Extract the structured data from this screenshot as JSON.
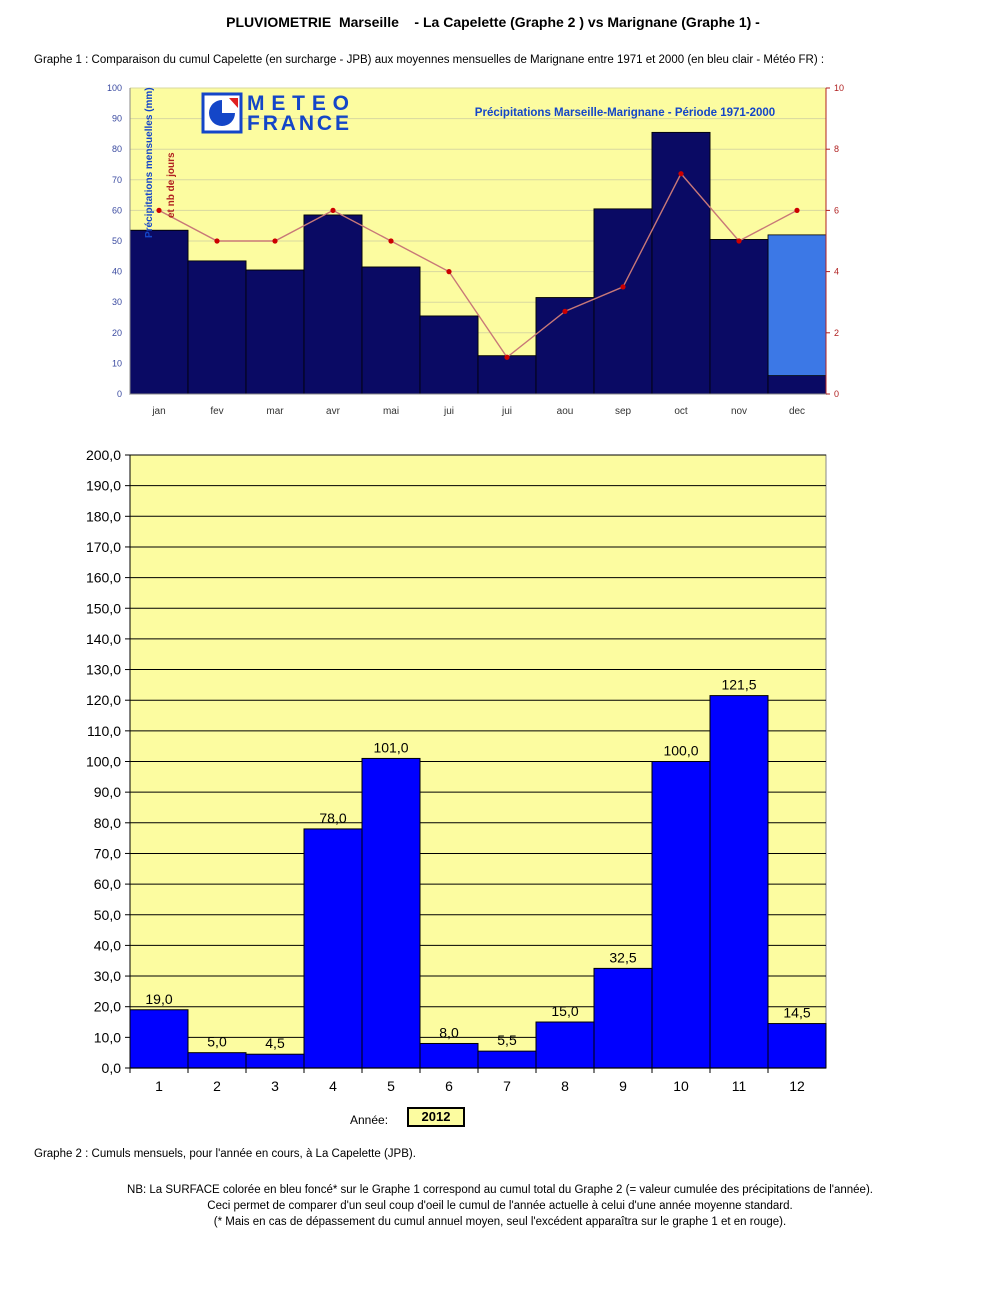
{
  "header": {
    "title": "PLUVIOMETRIE  Marseille    - La Capelette (Graphe 2 ) vs Marignane (Graphe 1) -",
    "subtitle": "Graphe 1 : Comparaison du cumul Capelette (en surcharge - JPB) aux moyennes mensuelles de Marignane entre 1971 et 2000 (en bleu clair - Météo FR) :"
  },
  "logo": {
    "line1": "METEO",
    "line2": "FRANCE"
  },
  "colors": {
    "plot_bg": "#fcfca0",
    "dark_bar": "#0a0a64",
    "light_bar": "#3c78e6",
    "line": "#c87878",
    "marker": "#cc0000",
    "bar2": "#0000ff",
    "axis_blue": "#3a4aa0",
    "axis_red": "#b02020",
    "logo_blue": "#1446c8"
  },
  "chart_data": [
    {
      "type": "bar",
      "title": "Précipitations Marseille-Marignane - Période 1971-2000",
      "ylabel": "Précipitations mensuelles (mm)",
      "y2label": "et nb de jours",
      "categories": [
        "jan",
        "fev",
        "mar",
        "avr",
        "mai",
        "jui",
        "jui",
        "aou",
        "sep",
        "oct",
        "nov",
        "dec"
      ],
      "ylim": [
        0,
        100
      ],
      "y_ticks": [
        "0",
        "10",
        "20",
        "30",
        "40",
        "50",
        "60",
        "70",
        "80",
        "90",
        "100"
      ],
      "y2lim": [
        0,
        10
      ],
      "y2_ticks": [
        "0",
        "2",
        "4",
        "6",
        "8",
        "10"
      ],
      "grid": true,
      "series": [
        {
          "kind": "bar",
          "values": [
            53.5,
            43.5,
            40.5,
            58.5,
            41.5,
            25.5,
            12.5,
            31.5,
            60.5,
            85.5,
            50.5,
            52
          ]
        },
        {
          "kind": "bar-overlay",
          "values": [
            53.5,
            43.5,
            40.5,
            58.5,
            41.5,
            25.5,
            12.5,
            31.5,
            60.5,
            85.5,
            50.5,
            6
          ]
        },
        {
          "kind": "line",
          "axis": "right",
          "values": [
            6,
            5,
            5,
            6,
            5,
            4,
            1.2,
            2.7,
            3.5,
            7.2,
            5,
            6
          ]
        }
      ]
    },
    {
      "type": "bar",
      "categories": [
        "1",
        "2",
        "3",
        "4",
        "5",
        "6",
        "7",
        "8",
        "9",
        "10",
        "11",
        "12"
      ],
      "values": [
        19.0,
        5.0,
        4.5,
        78.0,
        101.0,
        8.0,
        5.5,
        15.0,
        32.5,
        100.0,
        121.5,
        14.5
      ],
      "value_labels": [
        "19,0",
        "5,0",
        "4,5",
        "78,0",
        "101,0",
        "8,0",
        "5,5",
        "15,0",
        "32,5",
        "100,0",
        "121,5",
        "14,5"
      ],
      "ylim": [
        0,
        200
      ],
      "y_ticks": [
        "0,0",
        "10,0",
        "20,0",
        "30,0",
        "40,0",
        "50,0",
        "60,0",
        "70,0",
        "80,0",
        "90,0",
        "100,0",
        "110,0",
        "120,0",
        "130,0",
        "140,0",
        "150,0",
        "160,0",
        "170,0",
        "180,0",
        "190,0",
        "200,0"
      ],
      "grid": true
    }
  ],
  "year_label": "Année:",
  "year_value": "2012",
  "caption2": "Graphe 2 : Cumuls mensuels, pour l'année en cours, à La Capelette (JPB).",
  "note": [
    "NB: La SURFACE colorée en bleu foncé* sur le Graphe 1 correspond au cumul total du Graphe 2 (= valeur cumulée des précipitations de l'année).",
    "Ceci permet de comparer d'un seul coup d'oeil le cumul de l'année actuelle à celui d'une année moyenne standard.",
    "(* Mais en cas de dépassement du cumul annuel moyen, seul l'excédent apparaîtra sur le graphe 1 et en rouge)."
  ]
}
